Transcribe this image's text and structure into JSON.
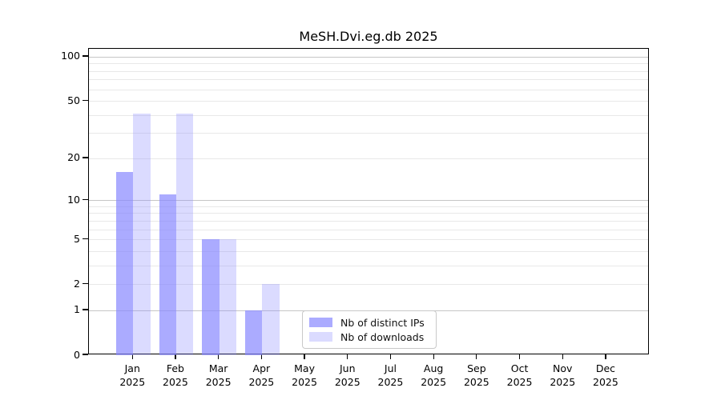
{
  "title": "MeSH.Dvi.eg.db 2025",
  "legend": {
    "items": [
      {
        "label": "Nb of distinct IPs"
      },
      {
        "label": "Nb of downloads"
      }
    ],
    "position": "lower center"
  },
  "colors": {
    "bar_base": "#8888ff",
    "distinct_ips_alpha": 0.7,
    "downloads_alpha": 0.3,
    "distinct_ips_rendered": "#a9a9f7",
    "downloads_rendered": "#dbdbfa",
    "grid_major": "#c6c6c6",
    "grid_minor": "#e8e8e8",
    "axis": "#000000"
  },
  "chart_data": {
    "type": "bar",
    "title": "MeSH.Dvi.eg.db 2025",
    "categories": [
      "Jan 2025",
      "Feb 2025",
      "Mar 2025",
      "Apr 2025",
      "May 2025",
      "Jun 2025",
      "Jul 2025",
      "Aug 2025",
      "Sep 2025",
      "Oct 2025",
      "Nov 2025",
      "Dec 2025"
    ],
    "months": [
      {
        "month": "Jan",
        "year": "2025"
      },
      {
        "month": "Feb",
        "year": "2025"
      },
      {
        "month": "Mar",
        "year": "2025"
      },
      {
        "month": "Apr",
        "year": "2025"
      },
      {
        "month": "May",
        "year": "2025"
      },
      {
        "month": "Jun",
        "year": "2025"
      },
      {
        "month": "Jul",
        "year": "2025"
      },
      {
        "month": "Aug",
        "year": "2025"
      },
      {
        "month": "Sep",
        "year": "2025"
      },
      {
        "month": "Oct",
        "year": "2025"
      },
      {
        "month": "Nov",
        "year": "2025"
      },
      {
        "month": "Dec",
        "year": "2025"
      }
    ],
    "series": [
      {
        "name": "Nb of distinct IPs",
        "values": [
          16,
          11,
          5,
          1,
          0,
          0,
          0,
          0,
          0,
          0,
          0,
          0
        ]
      },
      {
        "name": "Nb of downloads",
        "values": [
          41,
          41,
          5,
          2,
          0,
          0,
          0,
          0,
          0,
          0,
          0,
          0
        ]
      }
    ],
    "xlabel": "",
    "ylabel": "",
    "yscale": "log1p",
    "yticks": [
      0,
      1,
      2,
      5,
      10,
      20,
      50,
      100
    ],
    "ylim": [
      0,
      113
    ],
    "grid": {
      "orientation": "horizontal",
      "major": [
        1,
        10,
        100
      ],
      "minor": [
        2,
        3,
        4,
        5,
        6,
        7,
        8,
        9,
        20,
        30,
        40,
        50,
        60,
        70,
        80,
        90
      ]
    },
    "legend_position": "lower center"
  }
}
